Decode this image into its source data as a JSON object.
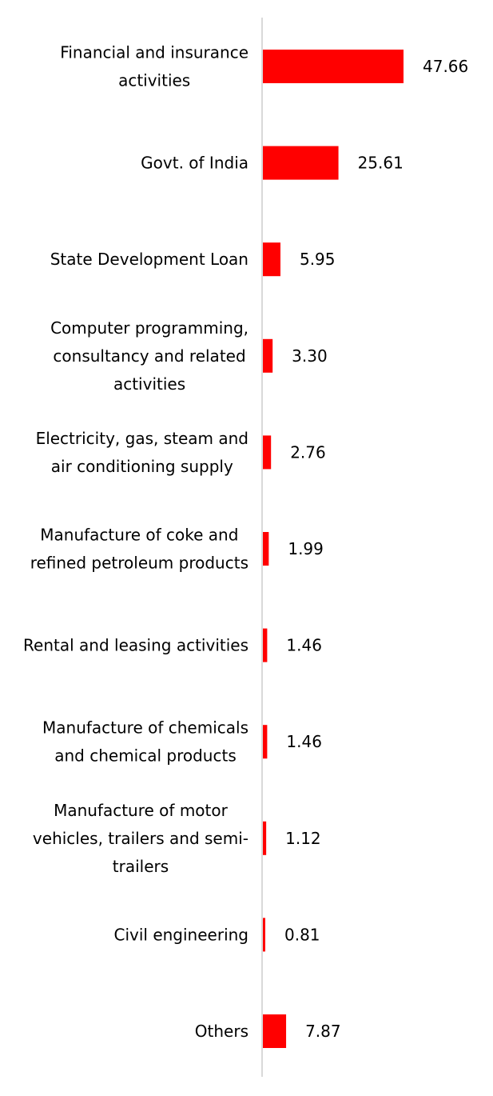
{
  "chart_data": {
    "type": "bar",
    "orientation": "horizontal",
    "categories": [
      "Financial and insurance activities",
      "Govt. of India",
      "State Development Loan",
      "Computer programming, consultancy and related activities",
      "Electricity, gas, steam and air conditioning supply",
      "Manufacture of coke and refined petroleum products",
      "Rental and leasing activities",
      "Manufacture of chemicals and chemical products",
      "Manufacture of motor vehicles, trailers and semi-trailers",
      "Civil engineering",
      "Others"
    ],
    "category_lines": [
      [
        "Financial and insurance",
        "activities"
      ],
      [
        "Govt. of India"
      ],
      [
        "State Development Loan"
      ],
      [
        "Computer programming,",
        "consultancy and related",
        "activities"
      ],
      [
        "Electricity, gas, steam and",
        "air conditioning supply"
      ],
      [
        "Manufacture of coke and",
        "refined petroleum products"
      ],
      [
        "Rental and leasing activities"
      ],
      [
        "Manufacture of chemicals",
        "and chemical products"
      ],
      [
        "Manufacture of motor",
        "vehicles, trailers and semi-",
        "trailers"
      ],
      [
        "Civil engineering"
      ],
      [
        "Others"
      ]
    ],
    "values": [
      47.66,
      25.61,
      5.95,
      3.3,
      2.76,
      1.99,
      1.46,
      1.46,
      1.12,
      0.81,
      7.87
    ],
    "value_labels": [
      "47.66",
      "25.61",
      "5.95",
      "3.30",
      "2.76",
      "1.99",
      "1.46",
      "1.46",
      "1.12",
      "0.81",
      "7.87"
    ],
    "bar_color": "#ff0000",
    "axis_color": "#d9d9d9",
    "xlim": [
      0,
      47.66
    ],
    "legend": "none",
    "grid": false,
    "title": "",
    "xlabel": "",
    "ylabel": ""
  }
}
